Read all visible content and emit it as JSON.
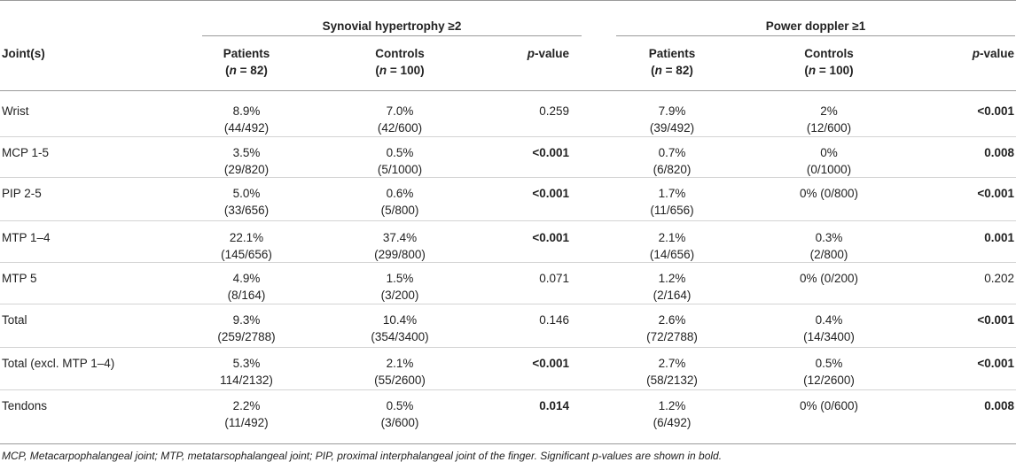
{
  "header": {
    "group1": "Synovial hypertrophy ≥2",
    "group2": "Power doppler ≥1",
    "joint_label": "Joint(s)",
    "patients": "Patients",
    "patients_n": "(n = 82)",
    "controls": "Controls",
    "controls_n": "(n = 100)",
    "pvalue": "p-value"
  },
  "rows": [
    {
      "joint": "Wrist",
      "sh_pat": "8.9%",
      "sh_pat2": "(44/492)",
      "sh_con": "7.0%",
      "sh_con2": "(42/600)",
      "sh_p": "0.259",
      "pd_pat": "7.9%",
      "pd_pat2": "(39/492)",
      "pd_con": "2%",
      "pd_con2": "(12/600)",
      "pd_p": "<0.001"
    },
    {
      "joint": "MCP 1-5",
      "sh_pat": "3.5%",
      "sh_pat2": "(29/820)",
      "sh_con": "0.5%",
      "sh_con2": "(5/1000)",
      "sh_p": "<0.001",
      "pd_pat": "0.7%",
      "pd_pat2": "(6/820)",
      "pd_con": "0%",
      "pd_con2": "(0/1000)",
      "pd_p": "0.008"
    },
    {
      "joint": "PIP 2-5",
      "sh_pat": "5.0%",
      "sh_pat2": "(33/656)",
      "sh_con": "0.6%",
      "sh_con2": "(5/800)",
      "sh_p": "<0.001",
      "pd_pat": "1.7%",
      "pd_pat2": "(11/656)",
      "pd_con": "0% (0/800)",
      "pd_con2": "",
      "pd_p": "<0.001"
    },
    {
      "joint": "MTP 1–4",
      "sh_pat": "22.1%",
      "sh_pat2": "(145/656)",
      "sh_con": "37.4%",
      "sh_con2": "(299/800)",
      "sh_p": "<0.001",
      "pd_pat": "2.1%",
      "pd_pat2": "(14/656)",
      "pd_con": "0.3%",
      "pd_con2": "(2/800)",
      "pd_p": "0.001"
    },
    {
      "joint": "MTP 5",
      "sh_pat": "4.9%",
      "sh_pat2": "(8/164)",
      "sh_con": "1.5%",
      "sh_con2": "(3/200)",
      "sh_p": "0.071",
      "pd_pat": "1.2%",
      "pd_pat2": "(2/164)",
      "pd_con": "0% (0/200)",
      "pd_con2": "",
      "pd_p": "0.202"
    },
    {
      "joint": "Total",
      "sh_pat": "9.3%",
      "sh_pat2": "(259/2788)",
      "sh_con": "10.4%",
      "sh_con2": "(354/3400)",
      "sh_p": "0.146",
      "pd_pat": "2.6%",
      "pd_pat2": "(72/2788)",
      "pd_con": "0.4%",
      "pd_con2": "(14/3400)",
      "pd_p": "<0.001"
    },
    {
      "joint": "Total (excl. MTP 1–4)",
      "sh_pat": "5.3%",
      "sh_pat2": "114/2132)",
      "sh_con": "2.1%",
      "sh_con2": "(55/2600)",
      "sh_p": "<0.001",
      "pd_pat": "2.7%",
      "pd_pat2": "(58/2132)",
      "pd_con": "0.5%",
      "pd_con2": "(12/2600)",
      "pd_p": "<0.001"
    },
    {
      "joint": "Tendons",
      "sh_pat": "2.2%",
      "sh_pat2": "(11/492)",
      "sh_con": "0.5%",
      "sh_con2": "(3/600)",
      "sh_p": "0.014",
      "pd_pat": "1.2%",
      "pd_pat2": "(6/492)",
      "pd_con": "0% (0/600)",
      "pd_con2": "",
      "pd_p": "0.008"
    }
  ],
  "bold_sh": [
    false,
    true,
    true,
    true,
    false,
    false,
    true,
    true
  ],
  "bold_pd": [
    true,
    true,
    true,
    true,
    false,
    true,
    true,
    true
  ],
  "footnote": "MCP, Metacarpophalangeal joint; MTP, metatarsophalangeal joint; PIP, proximal interphalangeal joint of the finger. Significant p-values are shown in bold."
}
